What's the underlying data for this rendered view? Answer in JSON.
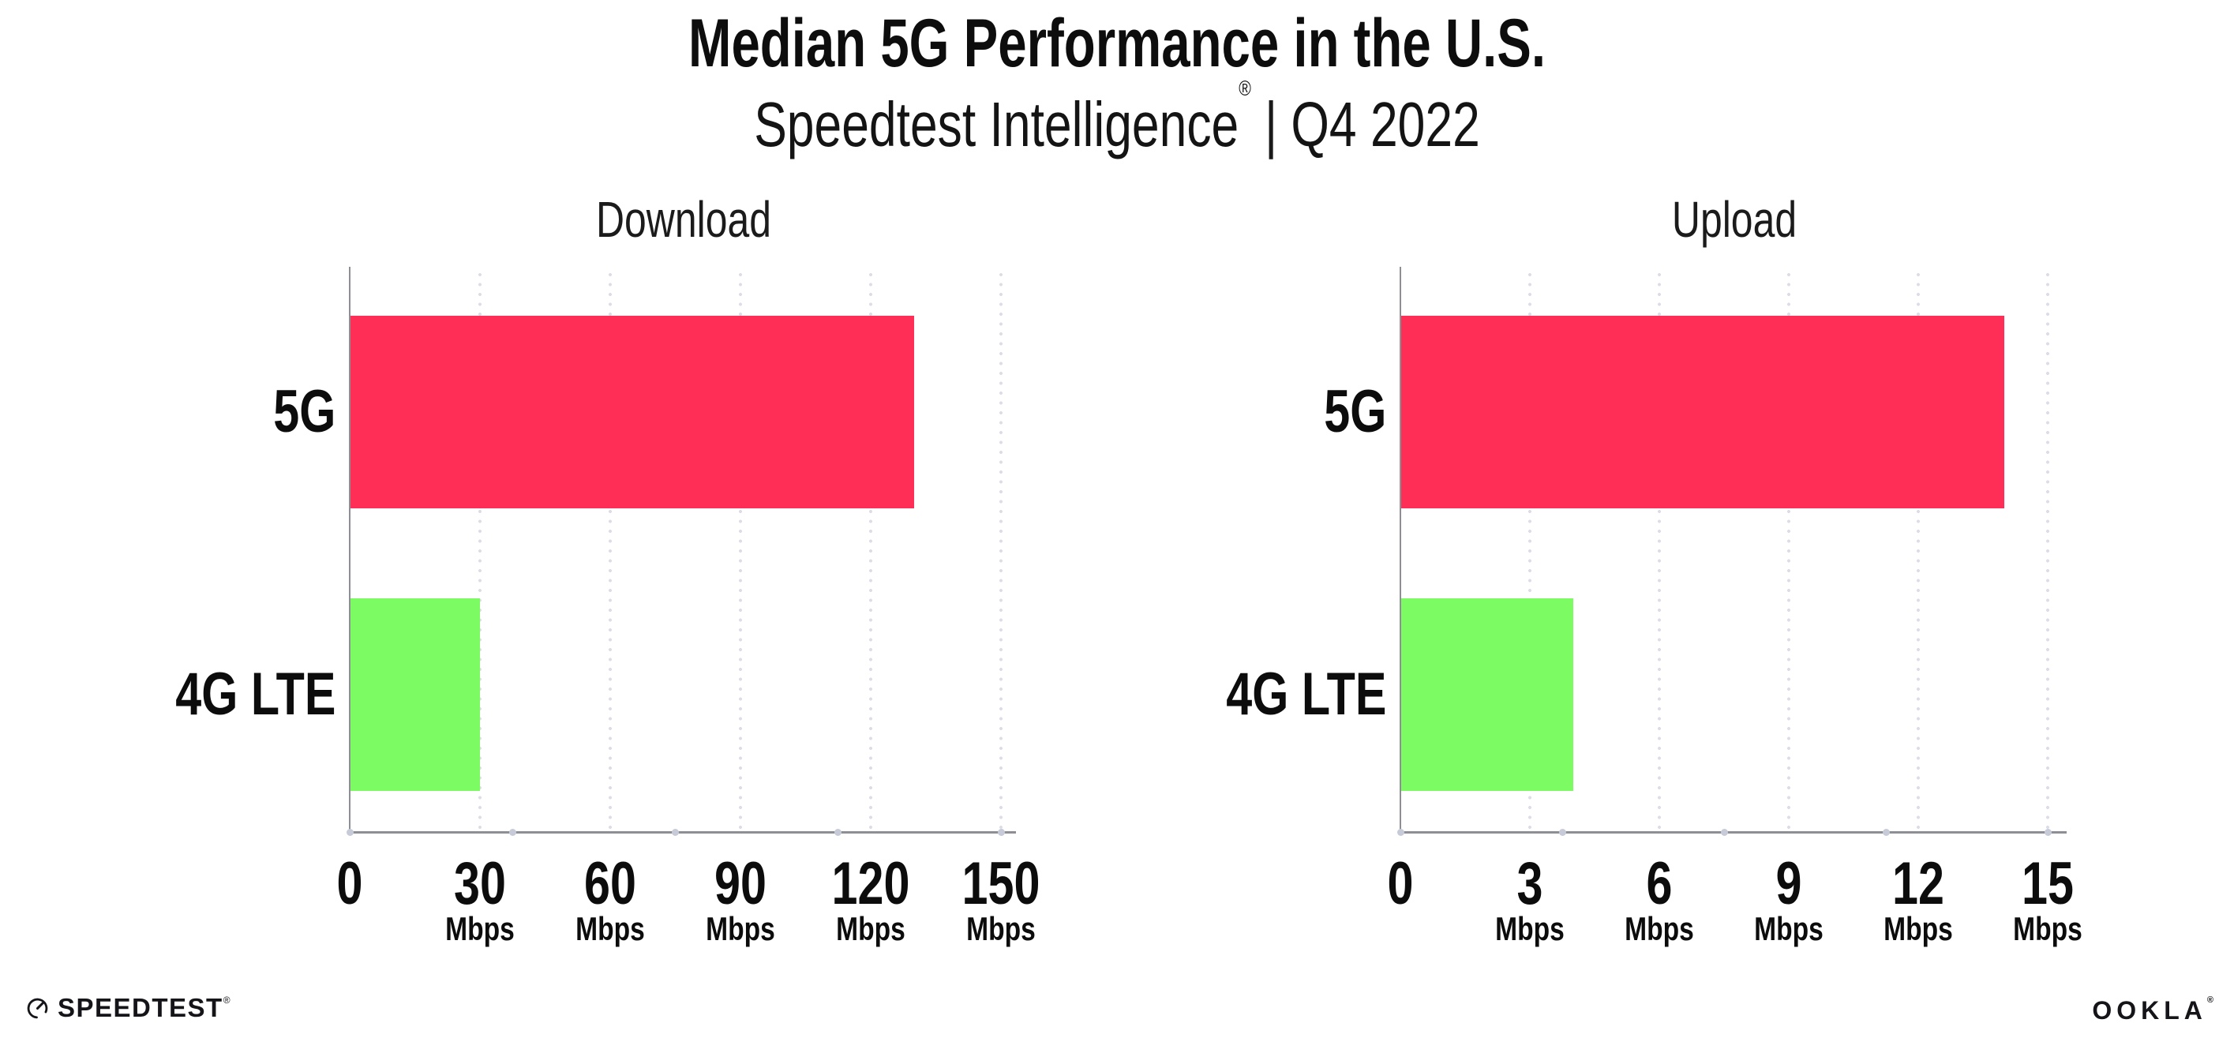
{
  "header": {
    "title": "Median 5G Performance in the U.S.",
    "subtitle_brand": "Speedtest Intelligence",
    "subtitle_reg": "®",
    "subtitle_sep": "|",
    "subtitle_period": "Q4 2022"
  },
  "colors": {
    "bar_5g": "#ff2e56",
    "bar_4g_lte": "#7dfb63",
    "axis": "#8e8f94",
    "gridline": "#dcdde7",
    "axis_dot": "#c7cbd7",
    "text": "#0c0c0c"
  },
  "chart_data": [
    {
      "type": "bar",
      "orientation": "horizontal",
      "title": "Download",
      "categories": [
        "5G",
        "4G LTE"
      ],
      "values": [
        130,
        30
      ],
      "unit": "Mbps",
      "xlabel": "",
      "ylabel": "",
      "xlim": [
        0,
        150
      ],
      "xticks": [
        0,
        30,
        60,
        90,
        120,
        150
      ],
      "grid": "vertical-dotted",
      "legend": "none"
    },
    {
      "type": "bar",
      "orientation": "horizontal",
      "title": "Upload",
      "categories": [
        "5G",
        "4G LTE"
      ],
      "values": [
        14,
        4
      ],
      "unit": "Mbps",
      "xlabel": "",
      "ylabel": "",
      "xlim": [
        0,
        15
      ],
      "xticks": [
        0,
        3,
        6,
        9,
        12,
        15
      ],
      "grid": "vertical-dotted",
      "legend": "none"
    }
  ],
  "footer": {
    "speedtest_label": "SPEEDTEST",
    "speedtest_mark": "®",
    "ookla_label": "OOKLA",
    "ookla_mark": "®"
  }
}
